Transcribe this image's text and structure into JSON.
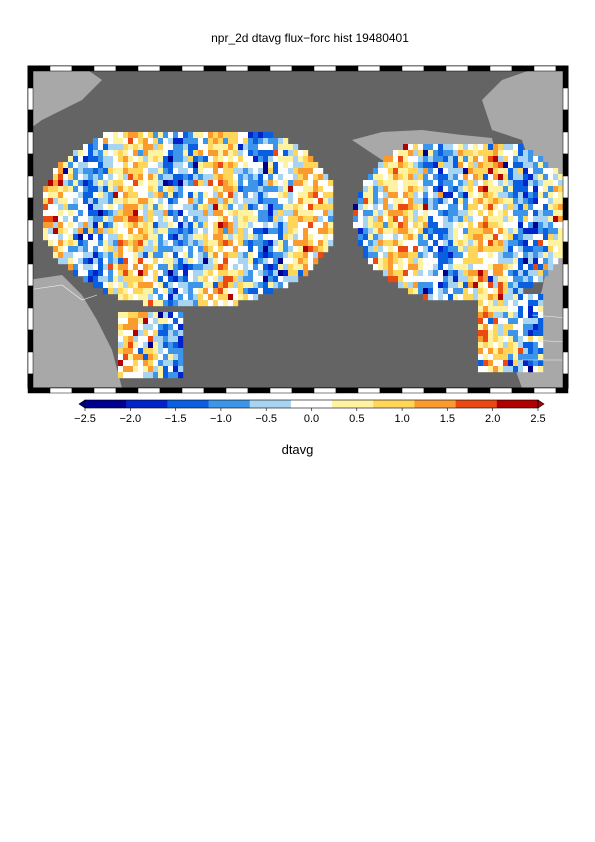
{
  "title": "npr_2d dtavg flux−forc hist 19480401",
  "colorbar": {
    "label": "dtavg",
    "ticks": [
      "−2.5",
      "−2.0",
      "−1.5",
      "−1.0",
      "−0.5",
      "0.0",
      "0.5",
      "1.0",
      "1.5",
      "2.0",
      "2.5"
    ],
    "range": [
      -2.5,
      2.5
    ],
    "colors": [
      "#00008f",
      "#0024c8",
      "#0a5fe0",
      "#3d95ea",
      "#a6d4f2",
      "#ffffff",
      "#fff2a0",
      "#ffd65a",
      "#fb9b2e",
      "#ea4a12",
      "#b00000"
    ]
  },
  "map": {
    "ocean_color": "#646464",
    "land_color": "#a8a8a8",
    "field": "dtavg"
  }
}
